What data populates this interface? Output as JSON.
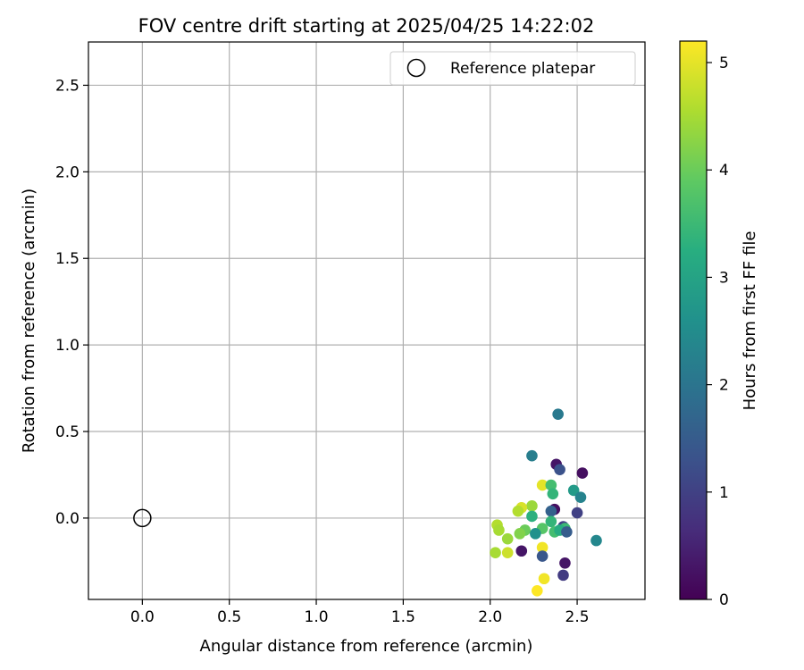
{
  "chart_data": {
    "type": "scatter",
    "title": "FOV centre drift starting at 2025/04/25 14:22:02",
    "xlabel": "Angular distance from reference (arcmin)",
    "ylabel": "Rotation from reference (arcmin)",
    "xlim": [
      -0.31,
      2.89
    ],
    "ylim": [
      -0.47,
      2.75
    ],
    "xticks": [
      0.0,
      0.5,
      1.0,
      1.5,
      2.0,
      2.5
    ],
    "xtick_labels": [
      "0.0",
      "0.5",
      "1.0",
      "1.5",
      "2.0",
      "2.5"
    ],
    "yticks": [
      0.0,
      0.5,
      1.0,
      1.5,
      2.0,
      2.5
    ],
    "ytick_labels": [
      "0.0",
      "0.5",
      "1.0",
      "1.5",
      "2.0",
      "2.5"
    ],
    "grid": true,
    "legend": {
      "position": "upper-right",
      "entries": [
        "Reference platepar"
      ]
    },
    "reference": {
      "label": "Reference platepar",
      "x": 0.0,
      "y": 0.0,
      "marker": "open-circle",
      "color": "#000000"
    },
    "colorbar": {
      "label": "Hours from first FF file",
      "colormap": "viridis",
      "range": [
        0,
        5.2
      ],
      "ticks": [
        0,
        1,
        2,
        3,
        4,
        5
      ],
      "tick_labels": [
        "0",
        "1",
        "2",
        "3",
        "4",
        "5"
      ]
    },
    "points": [
      {
        "x": 2.39,
        "y": 0.6,
        "t": 2.1
      },
      {
        "x": 2.24,
        "y": 0.36,
        "t": 2.2
      },
      {
        "x": 2.38,
        "y": 0.31,
        "t": 0.3
      },
      {
        "x": 2.4,
        "y": 0.28,
        "t": 1.3
      },
      {
        "x": 2.53,
        "y": 0.26,
        "t": 0.2
      },
      {
        "x": 2.3,
        "y": 0.19,
        "t": 5.0
      },
      {
        "x": 2.35,
        "y": 0.19,
        "t": 3.6
      },
      {
        "x": 2.48,
        "y": 0.16,
        "t": 2.8
      },
      {
        "x": 2.36,
        "y": 0.14,
        "t": 3.4
      },
      {
        "x": 2.52,
        "y": 0.12,
        "t": 2.3
      },
      {
        "x": 2.24,
        "y": 0.07,
        "t": 4.4
      },
      {
        "x": 2.18,
        "y": 0.06,
        "t": 4.9
      },
      {
        "x": 2.16,
        "y": 0.04,
        "t": 4.6
      },
      {
        "x": 2.37,
        "y": 0.05,
        "t": 0.2
      },
      {
        "x": 2.35,
        "y": 0.04,
        "t": 1.6
      },
      {
        "x": 2.5,
        "y": 0.03,
        "t": 1.0
      },
      {
        "x": 2.24,
        "y": 0.01,
        "t": 3.3
      },
      {
        "x": 2.04,
        "y": -0.04,
        "t": 4.6
      },
      {
        "x": 2.35,
        "y": -0.02,
        "t": 3.4
      },
      {
        "x": 2.42,
        "y": -0.05,
        "t": 1.0
      },
      {
        "x": 2.05,
        "y": -0.07,
        "t": 4.5
      },
      {
        "x": 2.3,
        "y": -0.06,
        "t": 3.8
      },
      {
        "x": 2.2,
        "y": -0.07,
        "t": 4.0
      },
      {
        "x": 2.43,
        "y": -0.06,
        "t": 3.5
      },
      {
        "x": 2.37,
        "y": -0.08,
        "t": 3.6
      },
      {
        "x": 2.4,
        "y": -0.07,
        "t": 3.2
      },
      {
        "x": 2.17,
        "y": -0.09,
        "t": 4.2
      },
      {
        "x": 2.26,
        "y": -0.09,
        "t": 2.6
      },
      {
        "x": 2.44,
        "y": -0.08,
        "t": 1.5
      },
      {
        "x": 2.1,
        "y": -0.12,
        "t": 4.4
      },
      {
        "x": 2.61,
        "y": -0.13,
        "t": 2.4
      },
      {
        "x": 2.3,
        "y": -0.17,
        "t": 5.1
      },
      {
        "x": 2.18,
        "y": -0.19,
        "t": 0.3
      },
      {
        "x": 2.03,
        "y": -0.2,
        "t": 4.5
      },
      {
        "x": 2.1,
        "y": -0.2,
        "t": 4.8
      },
      {
        "x": 2.3,
        "y": -0.22,
        "t": 1.4
      },
      {
        "x": 2.43,
        "y": -0.26,
        "t": 0.3
      },
      {
        "x": 2.42,
        "y": -0.33,
        "t": 0.9
      },
      {
        "x": 2.31,
        "y": -0.35,
        "t": 5.1
      },
      {
        "x": 2.27,
        "y": -0.42,
        "t": 5.2
      }
    ]
  }
}
